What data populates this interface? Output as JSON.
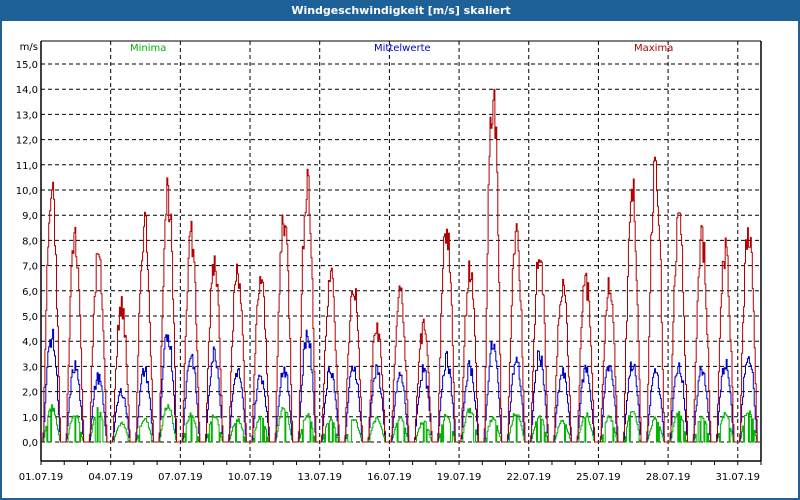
{
  "window": {
    "title": "Windgeschwindigkeit [m/s] skaliert"
  },
  "legend": [
    {
      "label": "Minima",
      "color": "#00b400"
    },
    {
      "label": "Mittelwerte",
      "color": "#0000c8"
    },
    {
      "label": "Maxima",
      "color": "#b40000"
    }
  ],
  "chart_data": {
    "type": "line",
    "title": "Windgeschwindigkeit [m/s] skaliert",
    "xlabel": "",
    "ylabel": "m/s",
    "ylim": [
      0,
      15
    ],
    "yticks": [
      "0,0",
      "1,0",
      "2,0",
      "3,0",
      "4,0",
      "5,0",
      "6,0",
      "7,0",
      "8,0",
      "9,0",
      "10,0",
      "11,0",
      "12,0",
      "13,0",
      "14,0",
      "15,0"
    ],
    "xticks": [
      "01.07.19",
      "04.07.19",
      "07.07.19",
      "10.07.19",
      "13.07.19",
      "16.07.19",
      "19.07.19",
      "22.07.19",
      "25.07.19",
      "28.07.19",
      "31.07.19"
    ],
    "grid": true,
    "legend_position": "top",
    "x": [
      "01.07",
      "02.07",
      "03.07",
      "04.07",
      "05.07",
      "06.07",
      "07.07",
      "08.07",
      "09.07",
      "10.07",
      "11.07",
      "12.07",
      "13.07",
      "14.07",
      "15.07",
      "16.07",
      "17.07",
      "18.07",
      "19.07",
      "20.07",
      "21.07",
      "22.07",
      "23.07",
      "24.07",
      "25.07",
      "26.07",
      "27.07",
      "28.07",
      "29.07",
      "30.07",
      "31.07"
    ],
    "series": [
      {
        "name": "Maxima",
        "color": "#b40000",
        "values": [
          10.7,
          9.1,
          8.0,
          5.9,
          9.5,
          10.9,
          9.1,
          8.0,
          7.6,
          7.1,
          9.9,
          11.5,
          7.3,
          6.8,
          5.0,
          6.6,
          4.9,
          9.5,
          7.6,
          15.1,
          9.1,
          8.1,
          7.0,
          7.0,
          6.8,
          10.8,
          12.4,
          9.4,
          8.8,
          8.4,
          9.3
        ]
      },
      {
        "name": "Mittelwerte",
        "color": "#0000c8",
        "values": [
          4.6,
          3.3,
          2.8,
          2.2,
          3.1,
          4.7,
          3.8,
          3.9,
          3.1,
          2.9,
          3.2,
          4.7,
          3.2,
          3.3,
          3.1,
          2.9,
          3.1,
          3.6,
          3.3,
          4.2,
          3.5,
          3.8,
          3.0,
          3.2,
          3.3,
          3.4,
          3.1,
          3.4,
          3.2,
          3.4,
          3.9
        ]
      },
      {
        "name": "Minima",
        "color": "#00b400",
        "values": [
          1.5,
          1.2,
          1.5,
          0.8,
          1.0,
          1.6,
          1.2,
          1.2,
          1.0,
          1.1,
          1.5,
          1.2,
          1.0,
          1.0,
          1.0,
          1.1,
          0.9,
          1.2,
          1.4,
          1.0,
          1.3,
          1.1,
          0.9,
          1.2,
          1.1,
          1.4,
          1.0,
          1.3,
          1.1,
          1.2,
          1.4
        ]
      }
    ]
  }
}
